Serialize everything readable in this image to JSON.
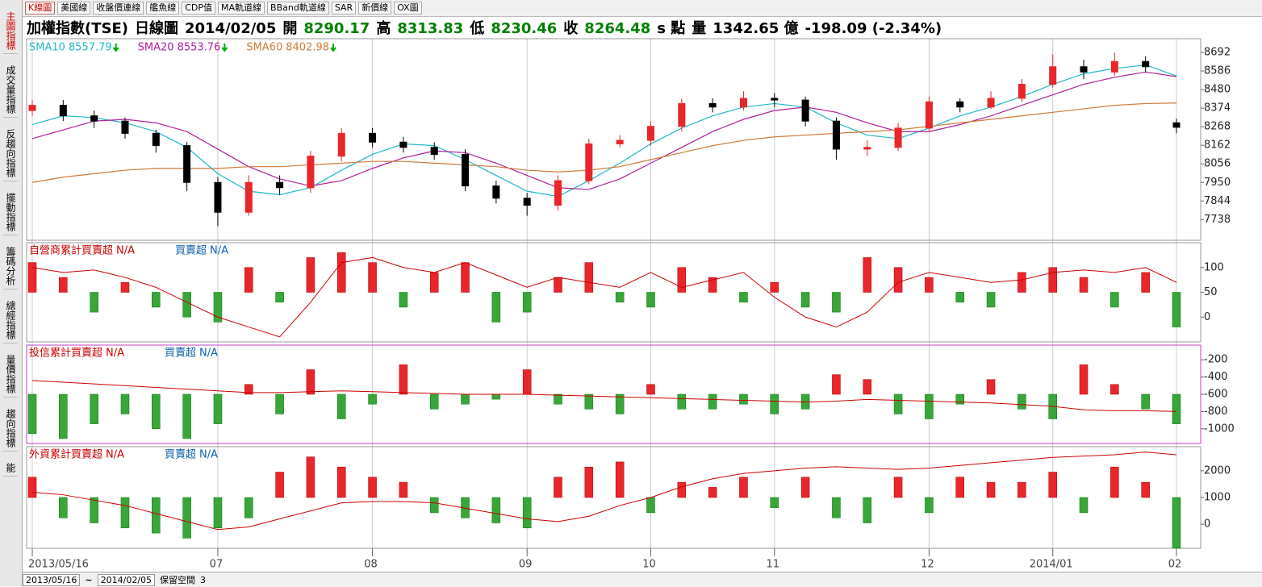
{
  "toolbar": {
    "tabs": [
      "K線圖",
      "美國線",
      "收盤價連線",
      "艦魚線",
      "CDP值",
      "MA軌道線",
      "BBand軌道線",
      "SAR",
      "新價線",
      "OX圖"
    ]
  },
  "sidebar": {
    "tabs": [
      "主圖指標",
      "成交量指標",
      "反趨向指標",
      "擺動指標",
      "籌碼分析",
      "總經指標",
      "量價指標",
      "趨向指標",
      "能"
    ]
  },
  "header": {
    "name": "加權指數(TSE)",
    "period": "日線圖",
    "date": "2014/02/05",
    "open_label": "開",
    "open": 8290.17,
    "high_label": "高",
    "high": 8313.83,
    "low_label": "低",
    "low": 8230.46,
    "close_label": "收",
    "close": 8264.48,
    "unit": "s 點",
    "volume_label": "量",
    "volume": "1342.65 億",
    "change": "-198.09 (-2.34%)"
  },
  "chart_data": [
    {
      "type": "candlestick",
      "up_color": "#e8262b",
      "down_color": "#000000",
      "categories": [
        "2013/05/16",
        null,
        null,
        null,
        null,
        null,
        "07",
        null,
        null,
        null,
        null,
        "08",
        null,
        null,
        null,
        null,
        "09",
        null,
        null,
        null,
        "10",
        null,
        null,
        null,
        "11",
        null,
        null,
        null,
        null,
        "12",
        null,
        null,
        null,
        "2014/01",
        null,
        null,
        null,
        "02"
      ],
      "open": [
        8360,
        8390,
        8330,
        8300,
        8230,
        8160,
        7950,
        7780,
        7950,
        7920,
        8100,
        8230,
        8180,
        8150,
        8110,
        7930,
        7860,
        7820,
        7960,
        8170,
        8190,
        8270,
        8400,
        8380,
        8430,
        8420,
        8300,
        8140,
        8150,
        8260,
        8410,
        8380,
        8430,
        8510,
        8610,
        8580,
        8640,
        8290.17
      ],
      "high": [
        8420,
        8420,
        8360,
        8320,
        8250,
        8180,
        7980,
        7990,
        7990,
        8130,
        8260,
        8260,
        8210,
        8180,
        8140,
        7960,
        7890,
        7990,
        8200,
        8220,
        8300,
        8430,
        8430,
        8470,
        8460,
        8440,
        8320,
        8190,
        8290,
        8440,
        8430,
        8470,
        8540,
        8680,
        8650,
        8690,
        8670,
        8313.83
      ],
      "low": [
        8330,
        8300,
        8260,
        8200,
        8120,
        7900,
        7700,
        7760,
        7880,
        7890,
        8070,
        8150,
        8120,
        8080,
        7900,
        7830,
        7760,
        7790,
        7940,
        8150,
        8160,
        8240,
        8350,
        8360,
        8380,
        8270,
        8080,
        8100,
        8130,
        8240,
        8350,
        8370,
        8410,
        8490,
        8540,
        8560,
        8580,
        8230.46
      ],
      "close": [
        8390,
        8330,
        8300,
        8230,
        8160,
        7950,
        7780,
        7950,
        7920,
        8100,
        8230,
        8180,
        8150,
        8110,
        7930,
        7860,
        7820,
        7960,
        8170,
        8190,
        8270,
        8400,
        8380,
        8430,
        8420,
        8300,
        8140,
        8150,
        8260,
        8410,
        8380,
        8430,
        8510,
        8610,
        8580,
        8640,
        8610,
        8264.48
      ],
      "series": [
        {
          "name": "SMA10",
          "latest": 8557.79,
          "color": "#1fb8c8",
          "values": [
            8280,
            8330,
            8320,
            8290,
            8240,
            8150,
            8000,
            7900,
            7880,
            7920,
            8020,
            8110,
            8170,
            8160,
            8080,
            7990,
            7900,
            7870,
            7960,
            8060,
            8170,
            8260,
            8330,
            8380,
            8400,
            8380,
            8290,
            8220,
            8200,
            8260,
            8330,
            8380,
            8440,
            8510,
            8570,
            8600,
            8620,
            8557.79
          ]
        },
        {
          "name": "SMA20",
          "latest": 8553.76,
          "color": "#b0209a",
          "values": [
            8200,
            8250,
            8300,
            8310,
            8290,
            8240,
            8140,
            8040,
            7970,
            7930,
            7960,
            8030,
            8090,
            8130,
            8120,
            8060,
            7990,
            7920,
            7910,
            7970,
            8060,
            8150,
            8240,
            8310,
            8360,
            8380,
            8350,
            8290,
            8240,
            8240,
            8280,
            8330,
            8390,
            8450,
            8510,
            8550,
            8580,
            8553.76
          ]
        },
        {
          "name": "SMA60",
          "latest": 8402.98,
          "color": "#d07a3a",
          "values": [
            7950,
            7980,
            8000,
            8020,
            8030,
            8030,
            8030,
            8040,
            8040,
            8050,
            8060,
            8070,
            8070,
            8060,
            8050,
            8040,
            8020,
            8010,
            8020,
            8040,
            8080,
            8120,
            8160,
            8190,
            8210,
            8220,
            8230,
            8240,
            8250,
            8270,
            8290,
            8310,
            8330,
            8350,
            8370,
            8390,
            8400,
            8402.98
          ]
        }
      ],
      "ylim": [
        7620,
        8770
      ],
      "yticks": [
        7738,
        7844,
        7950,
        8056,
        8162,
        8268,
        8374,
        8480,
        8586,
        8692
      ]
    },
    {
      "type": "bar",
      "up_color": "#e8262b",
      "down_color": "#3aa53a",
      "border": "#999999",
      "series": [
        {
          "name": "自營商累計買賣超",
          "value_label": "N/A",
          "color": "#cc0000",
          "values": [
            100,
            90,
            95,
            80,
            60,
            30,
            0,
            -20,
            -40,
            30,
            110,
            120,
            100,
            90,
            110,
            85,
            60,
            80,
            70,
            60,
            90,
            60,
            75,
            90,
            40,
            0,
            -20,
            10,
            70,
            90,
            80,
            70,
            75,
            90,
            95,
            90,
            100,
            70
          ]
        },
        {
          "name": "買賣超",
          "value_label": "N/A",
          "color": "#1060b0",
          "axis": "y2",
          "values": [
            60,
            30,
            -40,
            20,
            -30,
            -50,
            -60,
            50,
            -20,
            70,
            80,
            60,
            -30,
            40,
            60,
            -60,
            -40,
            30,
            60,
            -20,
            -30,
            50,
            30,
            -20,
            20,
            -30,
            -40,
            70,
            50,
            30,
            -20,
            -30,
            40,
            50,
            30,
            -30,
            40,
            -70
          ]
        }
      ],
      "ylim": [
        -50,
        150
      ],
      "yticks": [
        0,
        50,
        100
      ],
      "y2lim": [
        -100,
        100
      ]
    },
    {
      "type": "bar",
      "up_color": "#e8262b",
      "down_color": "#3aa53a",
      "border": "#c040c0",
      "series": [
        {
          "name": "投信累計買賣超",
          "value_label": "N/A",
          "color": "#cc0000",
          "values": [
            -440,
            -460,
            -480,
            -500,
            -520,
            -540,
            -560,
            -580,
            -580,
            -570,
            -560,
            -570,
            -580,
            -590,
            -600,
            -600,
            -600,
            -610,
            -620,
            -630,
            -640,
            -650,
            -660,
            -670,
            -680,
            -690,
            -680,
            -660,
            -670,
            -680,
            -690,
            -700,
            -720,
            -740,
            -780,
            -790,
            -790,
            -800
          ]
        },
        {
          "name": "買賣超",
          "value_label": "N/A",
          "color": "#1060b0",
          "axis": "y2",
          "values": [
            -80,
            -90,
            -60,
            -40,
            -70,
            -90,
            -60,
            20,
            -40,
            50,
            -50,
            -20,
            60,
            -30,
            -20,
            -10,
            50,
            -20,
            -30,
            -40,
            20,
            -30,
            -30,
            -20,
            -40,
            -30,
            40,
            30,
            -40,
            -50,
            -20,
            30,
            -30,
            -50,
            60,
            20,
            -30,
            -60
          ]
        }
      ],
      "ylim": [
        -1170,
        -30
      ],
      "yticks": [
        -1000,
        -800,
        -600,
        -400,
        -200
      ],
      "y2lim": [
        -100,
        100
      ]
    },
    {
      "type": "bar",
      "up_color": "#e8262b",
      "down_color": "#3aa53a",
      "border": "#999999",
      "series": [
        {
          "name": "外資累計買賣超",
          "value_label": "N/A",
          "color": "#cc0000",
          "values": [
            1200,
            1100,
            900,
            700,
            400,
            100,
            -200,
            -100,
            200,
            500,
            800,
            850,
            850,
            800,
            600,
            400,
            200,
            100,
            300,
            700,
            1000,
            1400,
            1700,
            1900,
            2000,
            2100,
            2150,
            2100,
            2050,
            2100,
            2200,
            2300,
            2400,
            2500,
            2550,
            2600,
            2700,
            2600
          ]
        },
        {
          "name": "買賣超",
          "value_label": "N/A",
          "color": "#1060b0",
          "axis": "y2",
          "values": [
            40,
            -40,
            -50,
            -60,
            -70,
            -80,
            -60,
            -40,
            50,
            80,
            60,
            40,
            30,
            -30,
            -40,
            -50,
            -60,
            40,
            60,
            70,
            -30,
            30,
            20,
            40,
            -20,
            40,
            -40,
            -50,
            40,
            -30,
            40,
            30,
            30,
            50,
            -30,
            60,
            30,
            -100
          ]
        }
      ],
      "ylim": [
        -900,
        2900
      ],
      "yticks": [
        0,
        1000,
        2000
      ],
      "y2lim": [
        -100,
        100
      ]
    }
  ],
  "footer": {
    "from": "2013/05/16",
    "sep": "~",
    "to": "2014/02/05",
    "reserve_label": "保留空間",
    "reserve": "3"
  }
}
